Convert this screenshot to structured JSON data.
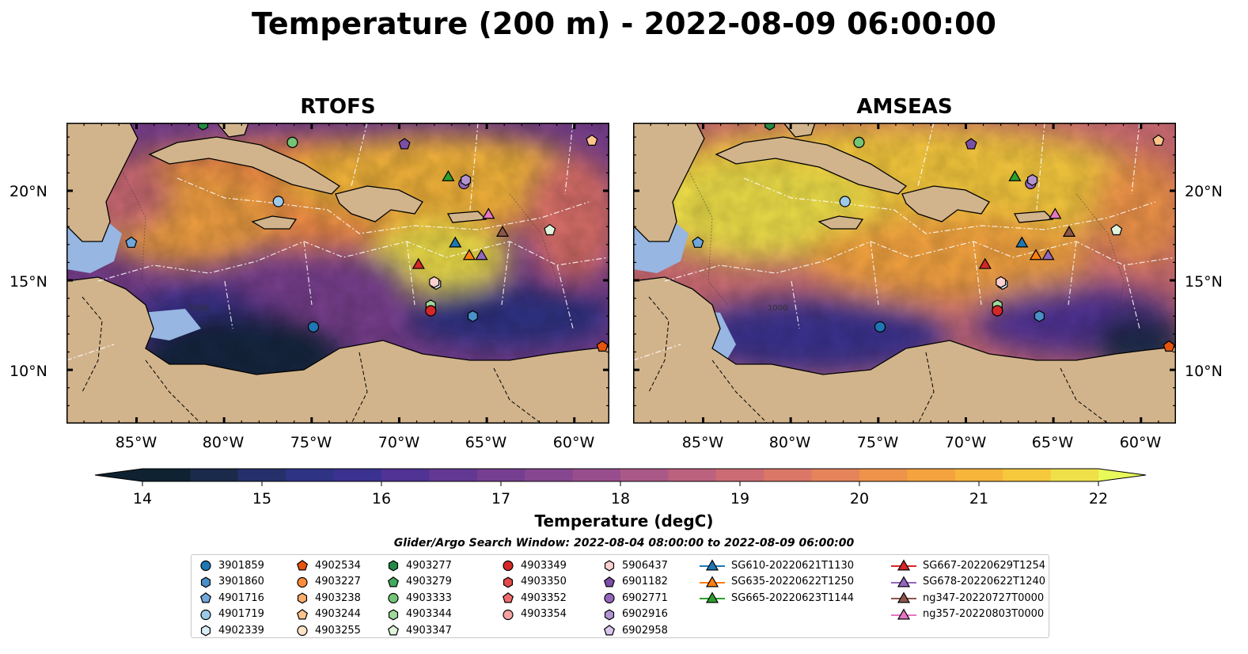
{
  "title": "Temperature (200 m) - 2022-08-09 06:00:00",
  "panels": [
    {
      "title": "RTOFS"
    },
    {
      "title": "AMSEAS"
    }
  ],
  "map": {
    "projection": "PlateCarree",
    "lon_range": [
      -89,
      -58
    ],
    "lat_range": [
      7,
      23.8
    ],
    "lat_ticks": [
      "20°N",
      "15°N",
      "10°N"
    ],
    "lon_ticks": [
      "85°W",
      "80°W",
      "75°W",
      "70°W",
      "65°W",
      "60°W"
    ],
    "land_color": "#d2b48c",
    "shallow_water_color": "#97b6e1",
    "grid": true,
    "contour_label": "1000"
  },
  "colorbar": {
    "label": "Temperature (degC)",
    "min": 14,
    "max": 22,
    "step": 0.5,
    "ticks": [
      "14",
      "15",
      "16",
      "17",
      "18",
      "19",
      "20",
      "21",
      "22"
    ],
    "extend": "both",
    "colormap": [
      "#0e2231",
      "#1a2a4a",
      "#25306b",
      "#2f3384",
      "#3b3290",
      "#503394",
      "#633893",
      "#763e91",
      "#874690",
      "#984e8d",
      "#aa5887",
      "#bc617e",
      "#cc6b74",
      "#da7767",
      "#e5845a",
      "#ee934a",
      "#f4a33f",
      "#f7b53a",
      "#f6c93d",
      "#efe04a"
    ],
    "under_color": "#0e2231",
    "over_color": "#e8fa5b"
  },
  "search_window": "Glider/Argo Search Window: 2022-08-04 08:00:00 to 2022-08-09 06:00:00",
  "legend": {
    "columns": [
      [
        {
          "label": "3901859",
          "marker": "circle",
          "color": "#1f77b4"
        },
        {
          "label": "3901860",
          "marker": "hexagon",
          "color": "#4a90c9"
        },
        {
          "label": "4901716",
          "marker": "pentagon",
          "color": "#6fa8dc"
        },
        {
          "label": "4901719",
          "marker": "circle",
          "color": "#9ecae9"
        },
        {
          "label": "4902339",
          "marker": "hexagon",
          "color": "#d9ecf8"
        }
      ],
      [
        {
          "label": "4902534",
          "marker": "pentagon",
          "color": "#e6550d"
        },
        {
          "label": "4903227",
          "marker": "circle",
          "color": "#fd8d3c"
        },
        {
          "label": "4903238",
          "marker": "hexagon",
          "color": "#fdae6b"
        },
        {
          "label": "4903244",
          "marker": "pentagon",
          "color": "#fdc58c"
        },
        {
          "label": "4903255",
          "marker": "circle",
          "color": "#fee3c8"
        }
      ],
      [
        {
          "label": "4903277",
          "marker": "hexagon",
          "color": "#238b45"
        },
        {
          "label": "4903279",
          "marker": "pentagon",
          "color": "#41ab5d"
        },
        {
          "label": "4903333",
          "marker": "circle",
          "color": "#74c476"
        },
        {
          "label": "4903344",
          "marker": "hexagon",
          "color": "#a1d99b"
        },
        {
          "label": "4903347",
          "marker": "pentagon",
          "color": "#e0f3db"
        }
      ],
      [
        {
          "label": "4903349",
          "marker": "circle",
          "color": "#d62728"
        },
        {
          "label": "4903350",
          "marker": "hexagon",
          "color": "#e34a4a"
        },
        {
          "label": "4903352",
          "marker": "pentagon",
          "color": "#ef6b6b"
        },
        {
          "label": "4903354",
          "marker": "circle",
          "color": "#f4a3a3"
        }
      ],
      [
        {
          "label": "5906437",
          "marker": "hexagon",
          "color": "#fbd0d0"
        },
        {
          "label": "6901182",
          "marker": "pentagon",
          "color": "#7b4fa6"
        },
        {
          "label": "6902771",
          "marker": "circle",
          "color": "#9467bd"
        },
        {
          "label": "6902916",
          "marker": "hexagon",
          "color": "#b294d3"
        },
        {
          "label": "6902958",
          "marker": "pentagon",
          "color": "#d9c6ec"
        }
      ],
      [
        {
          "label": "SG610-20220621T1130",
          "marker": "triangle-line",
          "color": "#1f77b4"
        },
        {
          "label": "SG635-20220622T1250",
          "marker": "triangle-line",
          "color": "#ff7f0e"
        },
        {
          "label": "SG665-20220623T1144",
          "marker": "triangle-line",
          "color": "#2ca02c"
        }
      ],
      [
        {
          "label": "SG667-20220629T1254",
          "marker": "triangle-line",
          "color": "#d62728"
        },
        {
          "label": "SG678-20220622T1240",
          "marker": "triangle-line",
          "color": "#9467bd"
        },
        {
          "label": "ng347-20220727T0000",
          "marker": "triangle-line",
          "color": "#8c564b"
        },
        {
          "label": "ng357-20220803T0000",
          "marker": "triangle-line",
          "color": "#e377c2"
        }
      ]
    ]
  },
  "observations": [
    {
      "id": "3901859",
      "lon": -74.9,
      "lat": 12.4
    },
    {
      "id": "3901860",
      "lon": -65.8,
      "lat": 13.0
    },
    {
      "id": "4901716",
      "lon": -85.3,
      "lat": 17.1
    },
    {
      "id": "4901719",
      "lon": -76.9,
      "lat": 19.4
    },
    {
      "id": "4902339",
      "lon": -67.9,
      "lat": 14.8
    },
    {
      "id": "4902534",
      "lon": -58.4,
      "lat": 11.3
    },
    {
      "id": "4903244",
      "lon": -59.0,
      "lat": 22.8
    },
    {
      "id": "4903277",
      "lon": -81.2,
      "lat": 23.7
    },
    {
      "id": "4903333",
      "lon": -76.1,
      "lat": 22.7
    },
    {
      "id": "4903344",
      "lon": -68.2,
      "lat": 13.6
    },
    {
      "id": "4903347",
      "lon": -61.4,
      "lat": 17.8
    },
    {
      "id": "4903349",
      "lon": -68.2,
      "lat": 13.3
    },
    {
      "id": "5906437",
      "lon": -68.0,
      "lat": 14.9
    },
    {
      "id": "6901182",
      "lon": -69.7,
      "lat": 22.6
    },
    {
      "id": "6902771",
      "lon": -66.3,
      "lat": 20.4
    },
    {
      "id": "6902916",
      "lon": -66.2,
      "lat": 20.6
    },
    {
      "id": "SG610-20220621T1130",
      "lon": -66.8,
      "lat": 17.1
    },
    {
      "id": "SG635-20220622T1250",
      "lon": -66.0,
      "lat": 16.4
    },
    {
      "id": "SG665-20220623T1144",
      "lon": -67.2,
      "lat": 20.8
    },
    {
      "id": "SG667-20220629T1254",
      "lon": -68.9,
      "lat": 15.9
    },
    {
      "id": "SG678-20220622T1240",
      "lon": -65.3,
      "lat": 16.4
    },
    {
      "id": "ng347-20220727T0000",
      "lon": -64.1,
      "lat": 17.7
    },
    {
      "id": "ng357-20220803T0000",
      "lon": -64.9,
      "lat": 18.7
    }
  ]
}
